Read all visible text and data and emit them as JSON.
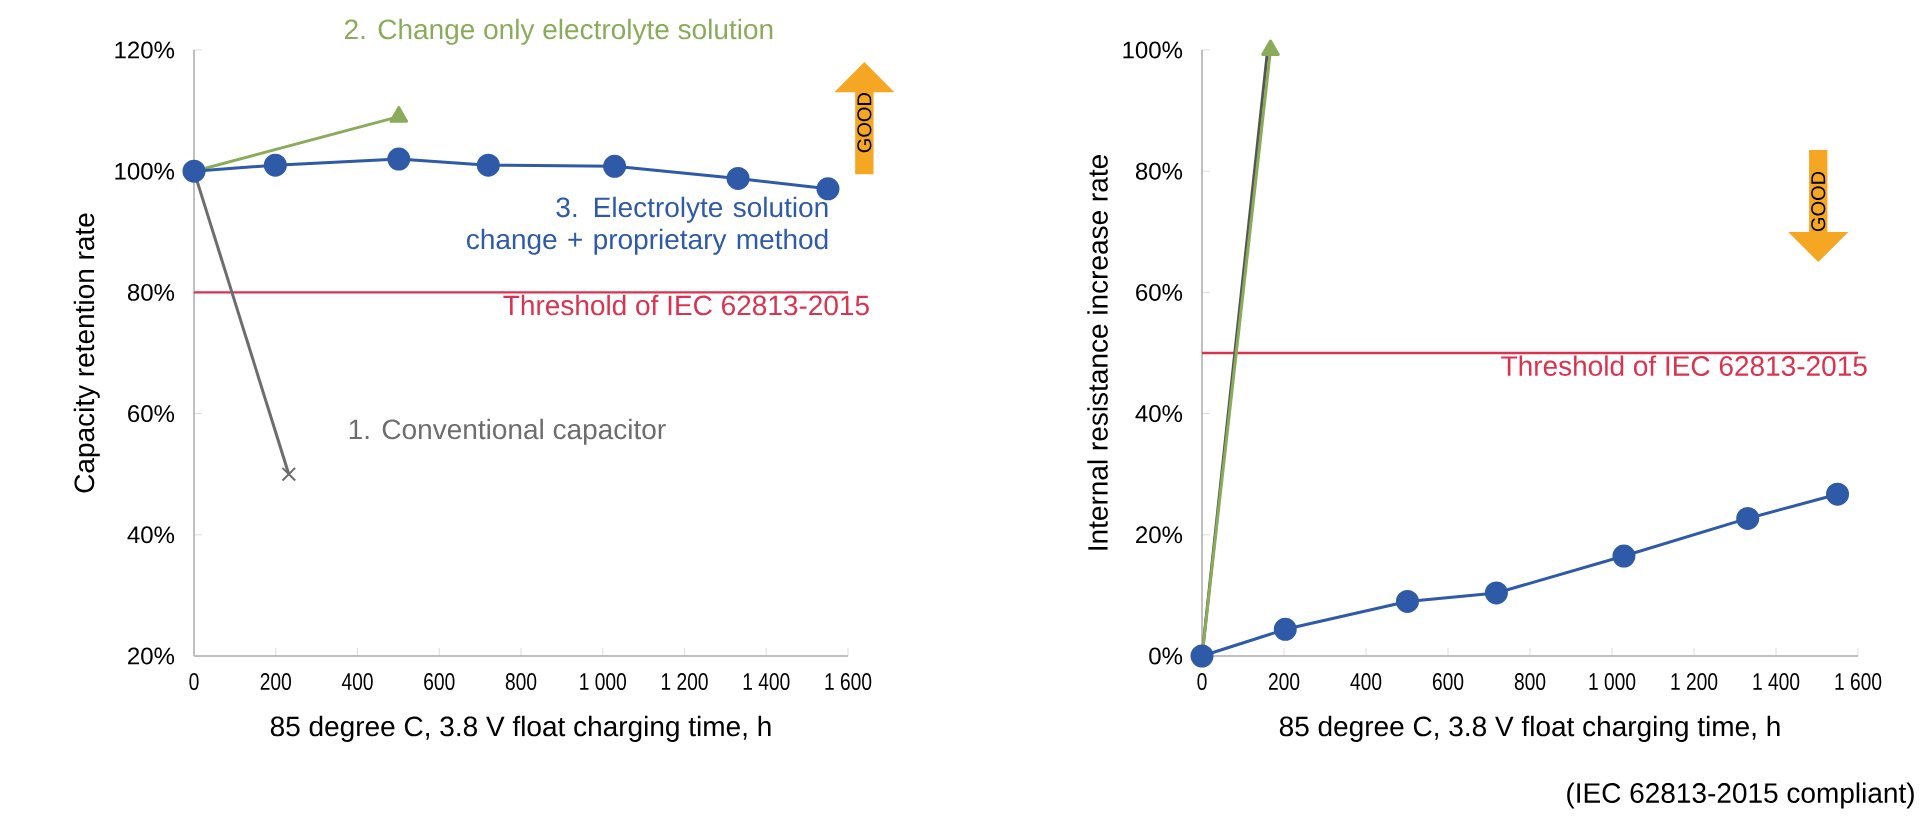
{
  "chart_data": [
    {
      "type": "line",
      "xlabel": "85 degree C, 3.8 V float charging time, h",
      "ylabel": "Capacity retention rate",
      "xlim": [
        0,
        1600
      ],
      "xticks": [
        0,
        200,
        400,
        600,
        800,
        {
          "value": 1000,
          "label": "1 000"
        },
        {
          "value": 1200,
          "label": "1 200"
        },
        {
          "value": 1400,
          "label": "1 400"
        },
        {
          "value": 1600,
          "label": "1 600"
        }
      ],
      "ylim": [
        20,
        120
      ],
      "yticks": [
        {
          "value": 20,
          "label": "20%"
        },
        {
          "value": 40,
          "label": "40%"
        },
        {
          "value": 60,
          "label": "60%"
        },
        {
          "value": 80,
          "label": "80%"
        },
        {
          "value": 100,
          "label": "100%"
        },
        {
          "value": 120,
          "label": "120%"
        }
      ],
      "series": [
        {
          "name": "1. Conventional capacitor",
          "color": "#6d6d6d",
          "marker": "cross",
          "x": [
            0,
            232
          ],
          "values": [
            100,
            50
          ]
        },
        {
          "name": "2. Change only electrolyte solution",
          "color": "#8aab5a",
          "marker": "triangle",
          "x": [
            0,
            501
          ],
          "values": [
            100,
            109
          ]
        },
        {
          "name": "3. Electrolyte solution change + proprietary method",
          "color": "#2e5aa8",
          "marker": "circle",
          "x": [
            0,
            199,
            501,
            720,
            1029,
            1331,
            1551
          ],
          "values": [
            100,
            101,
            102,
            101,
            100.8,
            98.8,
            97.1
          ]
        }
      ],
      "ref_lines": [
        {
          "axis": "y",
          "value": 80,
          "label": "Threshold of IEC 62813-2015",
          "color": "#d9334f"
        }
      ],
      "annotations": [
        "GOOD"
      ],
      "grid": false,
      "legend": false
    },
    {
      "type": "line",
      "xlabel": "85 degree C, 3.8 V float charging time, h",
      "ylabel": "Internal resistance increase rate",
      "xlim": [
        0,
        1600
      ],
      "xticks": [
        0,
        200,
        400,
        600,
        800,
        {
          "value": 1000,
          "label": "1 000"
        },
        {
          "value": 1200,
          "label": "1 200"
        },
        {
          "value": 1400,
          "label": "1 400"
        },
        {
          "value": 1600,
          "label": "1 600"
        }
      ],
      "ylim": [
        0,
        100
      ],
      "yticks": [
        {
          "value": 0,
          "label": "0%"
        },
        {
          "value": 20,
          "label": "20%"
        },
        {
          "value": 40,
          "label": "40%"
        },
        {
          "value": 60,
          "label": "60%"
        },
        {
          "value": 80,
          "label": "80%"
        },
        {
          "value": 100,
          "label": "100%"
        }
      ],
      "series": [
        {
          "color": "#555555",
          "marker": "none",
          "x": [
            0,
            160
          ],
          "values": [
            0,
            100
          ]
        },
        {
          "color": "#8aab5a",
          "marker": "triangle",
          "x": [
            0,
            167
          ],
          "values": [
            0,
            100
          ]
        },
        {
          "color": "#2e5aa8",
          "marker": "circle",
          "x": [
            0,
            203,
            501,
            718,
            1029,
            1331,
            1550
          ],
          "values": [
            0,
            4.4,
            9,
            10.4,
            16.5,
            22.7,
            26.7
          ]
        }
      ],
      "ref_lines": [
        {
          "axis": "y",
          "value": 50,
          "label": "Threshold of IEC 62813-2015",
          "color": "#d9334f"
        }
      ],
      "annotations": [
        "GOOD",
        "(IEC 62813-2015 compliant)"
      ],
      "grid": false,
      "legend": false
    }
  ]
}
